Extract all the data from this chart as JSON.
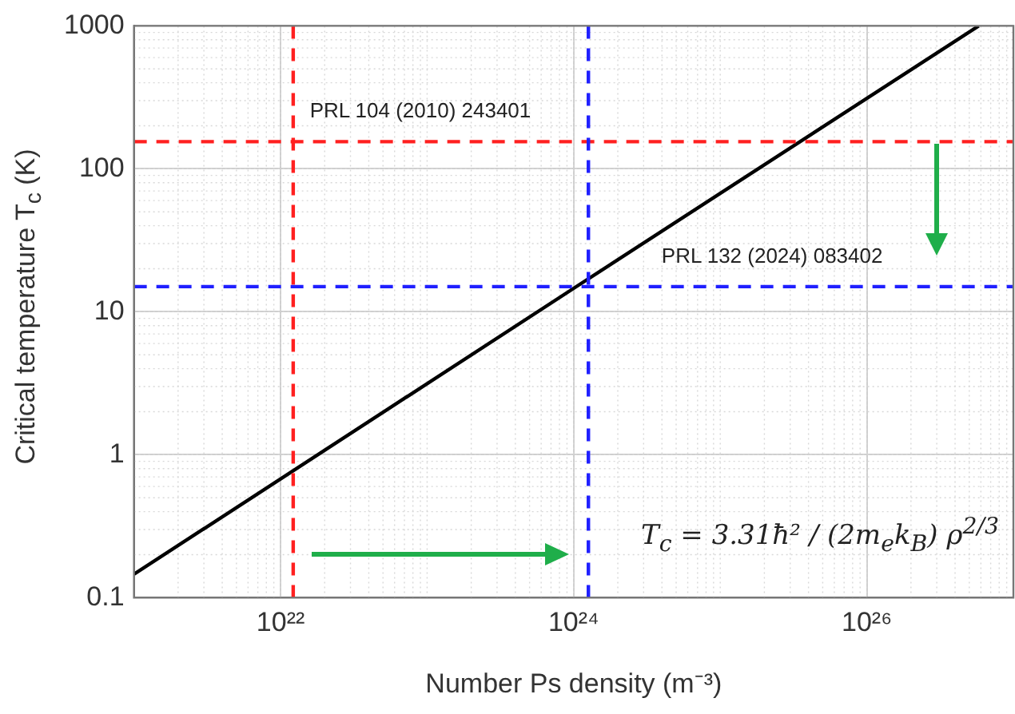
{
  "chart_data": {
    "type": "line",
    "xlabel": "Number Ps density (m⁻³)",
    "ylabel": "Critical temperature T$_{c}$ (K)",
    "x": [
      1e+21,
      1e+24,
      5.8e+26
    ],
    "series": [
      {
        "color": "#000000",
        "values": [
          0.146,
          14.6,
          1000
        ]
      }
    ],
    "log": "xy",
    "xlim": [
      1e+21,
      1e+27
    ],
    "xticks": [
      {
        "value": 1e+22,
        "label": "10²²"
      },
      {
        "value": 1e+24,
        "label": "10²⁴"
      },
      {
        "value": 1e+26,
        "label": "10²⁶"
      }
    ],
    "ylim": [
      0.1,
      1000
    ],
    "yticks": [
      0.1,
      1,
      10,
      100,
      1000
    ],
    "grid": true,
    "marker": "none",
    "line_style": "solid",
    "ref_lines": [
      {
        "axis": "x",
        "value": 1.22e+22,
        "color": "#ff2020",
        "line_style": "dashed"
      },
      {
        "axis": "y",
        "value": 155,
        "color": "#ff2020",
        "line_style": "dashed",
        "label": "PRL 104 (2010) 243401"
      },
      {
        "axis": "x",
        "value": 1.26e+24,
        "color": "#2020ff",
        "line_style": "dashed"
      },
      {
        "axis": "y",
        "value": 15,
        "color": "#2020ff",
        "line_style": "dashed",
        "label": "PRL 132 (2024) 083402"
      }
    ],
    "annotations": [
      "T$_{c}$ = 3.31ħ² / (2m$_{e}$k$_{B}$) ρ$^{2/3}$"
    ]
  }
}
